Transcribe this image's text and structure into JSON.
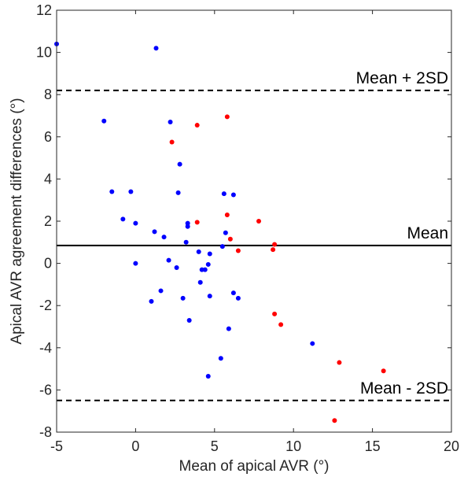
{
  "chart_data": {
    "type": "scatter",
    "title": "",
    "xlabel": "Mean of apical AVR (°)",
    "ylabel": "Apical AVR agreement differences (°)",
    "xlim": [
      -5,
      20
    ],
    "ylim": [
      -8,
      12
    ],
    "xticks": [
      -5,
      0,
      5,
      10,
      15,
      20
    ],
    "yticks": [
      -8,
      -6,
      -4,
      -2,
      0,
      2,
      4,
      6,
      8,
      10,
      12
    ],
    "grid": false,
    "legend": "none",
    "reference_lines": [
      {
        "label": "Mean + 2SD",
        "y": 8.2,
        "style": "dashed"
      },
      {
        "label": "Mean",
        "y": 0.85,
        "style": "solid"
      },
      {
        "label": "Mean - 2SD",
        "y": -6.5,
        "style": "dashed"
      }
    ],
    "series": [
      {
        "color": "#0000ff",
        "points": [
          [
            -5.0,
            10.4
          ],
          [
            1.3,
            10.2
          ],
          [
            -2.0,
            6.75
          ],
          [
            2.2,
            6.7
          ],
          [
            2.8,
            4.7
          ],
          [
            -1.5,
            3.4
          ],
          [
            -0.3,
            3.4
          ],
          [
            2.7,
            3.35
          ],
          [
            5.6,
            3.3
          ],
          [
            6.2,
            3.25
          ],
          [
            -0.8,
            2.1
          ],
          [
            0.0,
            1.9
          ],
          [
            3.3,
            1.9
          ],
          [
            3.3,
            1.75
          ],
          [
            1.2,
            1.5
          ],
          [
            5.7,
            1.45
          ],
          [
            1.8,
            1.25
          ],
          [
            3.2,
            1.0
          ],
          [
            5.5,
            0.8
          ],
          [
            4.0,
            0.55
          ],
          [
            4.7,
            0.45
          ],
          [
            0.0,
            0.0
          ],
          [
            2.1,
            0.15
          ],
          [
            4.6,
            -0.05
          ],
          [
            2.6,
            -0.2
          ],
          [
            4.2,
            -0.3
          ],
          [
            4.4,
            -0.3
          ],
          [
            4.1,
            -0.9
          ],
          [
            1.6,
            -1.3
          ],
          [
            6.2,
            -1.4
          ],
          [
            6.5,
            -1.65
          ],
          [
            4.7,
            -1.55
          ],
          [
            3.0,
            -1.65
          ],
          [
            1.0,
            -1.8
          ],
          [
            3.4,
            -2.7
          ],
          [
            5.9,
            -3.1
          ],
          [
            11.2,
            -3.8
          ],
          [
            5.4,
            -4.5
          ],
          [
            4.6,
            -5.35
          ]
        ]
      },
      {
        "color": "#ff0000",
        "points": [
          [
            5.8,
            6.95
          ],
          [
            3.9,
            6.55
          ],
          [
            2.3,
            5.75
          ],
          [
            5.8,
            2.3
          ],
          [
            3.9,
            1.95
          ],
          [
            7.8,
            2.0
          ],
          [
            6.0,
            1.15
          ],
          [
            8.8,
            0.9
          ],
          [
            6.5,
            0.6
          ],
          [
            8.7,
            0.65
          ],
          [
            8.8,
            -2.4
          ],
          [
            9.2,
            -2.9
          ],
          [
            12.9,
            -4.7
          ],
          [
            15.7,
            -5.1
          ],
          [
            12.6,
            -7.45
          ]
        ]
      }
    ]
  }
}
